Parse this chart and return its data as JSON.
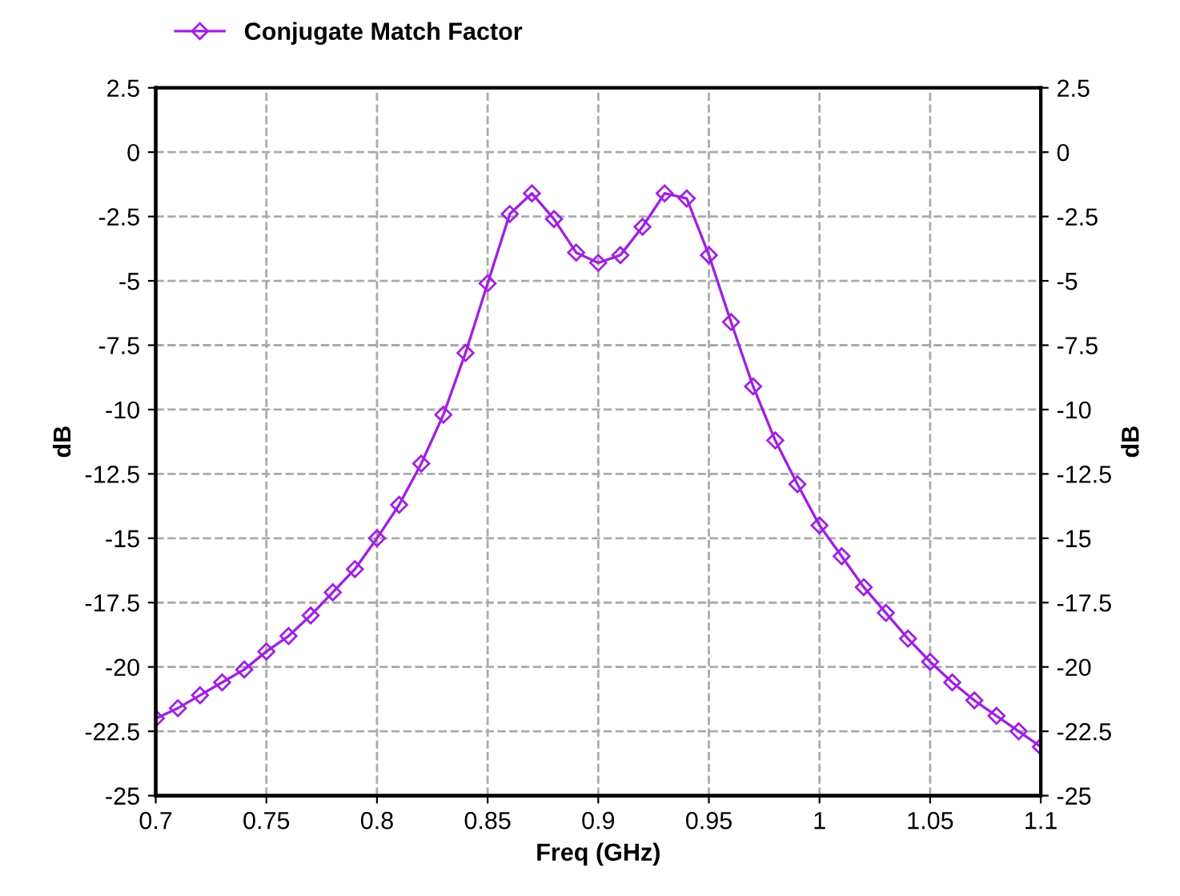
{
  "chart_data": {
    "type": "line",
    "xlabel": "Freq (GHz)",
    "ylabel": "dB",
    "y2label": "dB",
    "x": [
      0.7,
      0.71,
      0.72,
      0.73,
      0.74,
      0.75,
      0.76,
      0.77,
      0.78,
      0.79,
      0.8,
      0.81,
      0.82,
      0.83,
      0.84,
      0.85,
      0.86,
      0.87,
      0.88,
      0.89,
      0.9,
      0.91,
      0.92,
      0.93,
      0.94,
      0.95,
      0.96,
      0.97,
      0.98,
      0.99,
      1.0,
      1.01,
      1.02,
      1.03,
      1.04,
      1.05,
      1.06,
      1.07,
      1.08,
      1.09,
      1.1
    ],
    "series": [
      {
        "name": "Conjugate Match Factor",
        "color": "#a020e0",
        "values": [
          -22.0,
          -21.6,
          -21.1,
          -20.6,
          -20.1,
          -19.4,
          -18.8,
          -18.0,
          -17.1,
          -16.2,
          -15.0,
          -13.7,
          -12.1,
          -10.2,
          -7.8,
          -5.1,
          -2.4,
          -1.6,
          -2.6,
          -3.9,
          -4.3,
          -4.0,
          -2.9,
          -1.6,
          -1.8,
          -4.0,
          -6.6,
          -9.1,
          -11.2,
          -12.9,
          -14.5,
          -15.7,
          -16.9,
          -17.9,
          -18.9,
          -19.8,
          -20.6,
          -21.3,
          -21.9,
          -22.5,
          -23.1
        ]
      }
    ],
    "xlim": [
      0.7,
      1.1
    ],
    "xticks": [
      0.7,
      0.75,
      0.8,
      0.85,
      0.9,
      0.95,
      1,
      1.05,
      1.1
    ],
    "ylim": [
      -25,
      2.5
    ],
    "yticks": [
      -25,
      -22.5,
      -20,
      -17.5,
      -15,
      -12.5,
      -10,
      -7.5,
      -5,
      -2.5,
      0,
      2.5
    ],
    "y2lim": [
      -25,
      2.5
    ],
    "y2ticks": [
      -25,
      -22.5,
      -20,
      -17.5,
      -15,
      -12.5,
      -10,
      -7.5,
      -5,
      -2.5,
      0,
      2.5
    ],
    "grid": true,
    "legend": "top left",
    "marker": "diamond",
    "line_style": "solid"
  }
}
